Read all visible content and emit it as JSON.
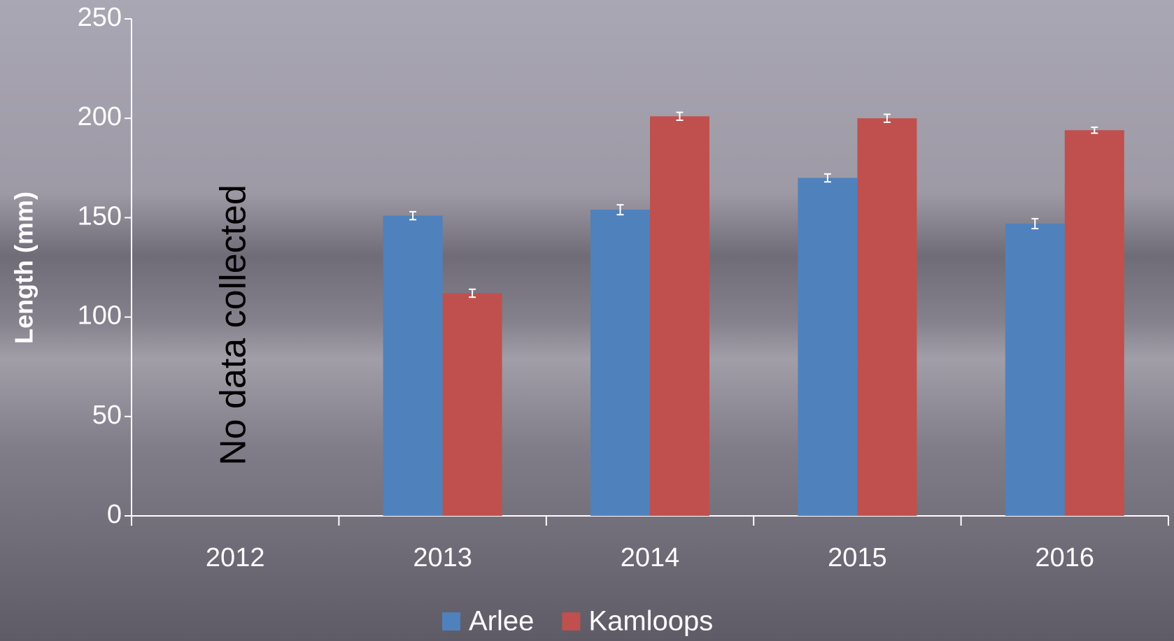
{
  "chart_data": {
    "type": "bar",
    "y_label": "Length (mm)",
    "annotation": "No data collected",
    "categories": [
      "2012",
      "2013",
      "2014",
      "2015",
      "2016"
    ],
    "series": [
      {
        "name": "Arlee",
        "color": "#4f81bd",
        "values": [
          null,
          151,
          154,
          170,
          147
        ],
        "errors": [
          null,
          2,
          2.5,
          2,
          2.5
        ]
      },
      {
        "name": "Kamloops",
        "color": "#c0504d",
        "values": [
          null,
          112,
          201,
          200,
          194
        ],
        "errors": [
          null,
          2,
          2,
          2,
          1.5
        ]
      }
    ],
    "ylim": [
      0,
      250
    ],
    "yticks": [
      0,
      50,
      100,
      150,
      200,
      250
    ],
    "legend": "bottom",
    "grid": false
  }
}
